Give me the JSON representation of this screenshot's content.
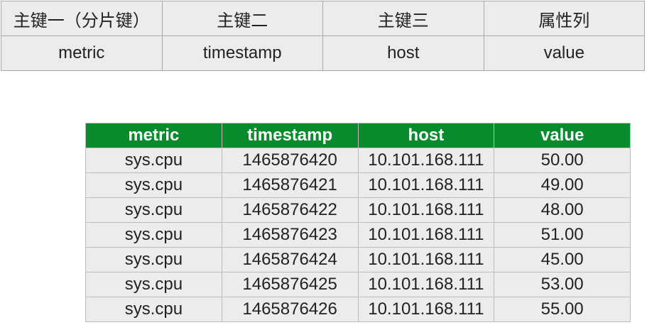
{
  "key_table": {
    "headers": [
      "主键一（分片键）",
      "主键二",
      "主键三",
      "属性列"
    ],
    "rows": [
      [
        "metric",
        "timestamp",
        "host",
        "value"
      ]
    ]
  },
  "data_table": {
    "headers": [
      "metric",
      "timestamp",
      "host",
      "value"
    ],
    "rows": [
      [
        "sys.cpu",
        "1465876420",
        "10.101.168.111",
        "50.00"
      ],
      [
        "sys.cpu",
        "1465876421",
        "10.101.168.111",
        "49.00"
      ],
      [
        "sys.cpu",
        "1465876422",
        "10.101.168.111",
        "48.00"
      ],
      [
        "sys.cpu",
        "1465876423",
        "10.101.168.111",
        "51.00"
      ],
      [
        "sys.cpu",
        "1465876424",
        "10.101.168.111",
        "45.00"
      ],
      [
        "sys.cpu",
        "1465876425",
        "10.101.168.111",
        "53.00"
      ],
      [
        "sys.cpu",
        "1465876426",
        "10.101.168.111",
        "55.00"
      ]
    ]
  }
}
